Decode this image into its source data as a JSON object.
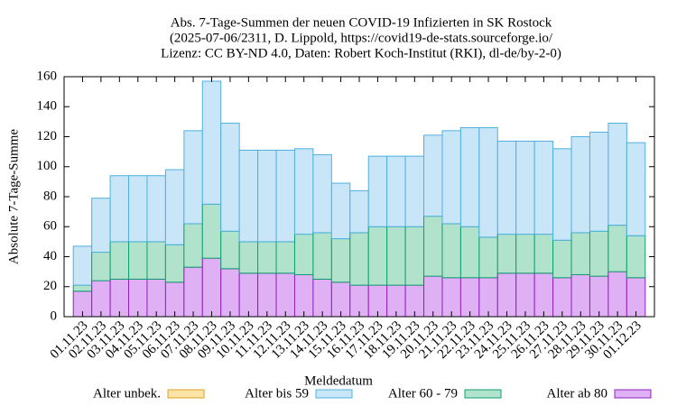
{
  "chart_data": {
    "type": "stacked_bar",
    "title": [
      "Abs. 7-Tage-Summen der neuen COVID-19 Infizierten in SK Rostock",
      "(2025-07-06/2311, D. Lippold, https://covid19-de-stats.sourceforge.io/",
      "Lizenz: CC BY-ND 4.0, Daten: Robert Koch-Institut (RKI), dl-de/by-2-0)"
    ],
    "x_label": "Meldedatum",
    "y_label": "Absolute 7-Tage-Summe",
    "categories": [
      "01.11.23",
      "02.11.23",
      "03.11.23",
      "04.11.23",
      "05.11.23",
      "06.11.23",
      "07.11.23",
      "08.11.23",
      "09.11.23",
      "10.11.23",
      "11.11.23",
      "12.11.23",
      "13.11.23",
      "14.11.23",
      "15.11.23",
      "16.11.23",
      "17.11.23",
      "18.11.23",
      "19.11.23",
      "20.11.23",
      "21.11.23",
      "22.11.23",
      "23.11.23",
      "24.11.23",
      "25.11.23",
      "26.11.23",
      "27.11.23",
      "28.11.23",
      "29.11.23",
      "30.11.23",
      "01.12.23"
    ],
    "series": [
      {
        "name": "Alter ab 80",
        "color": "#e0b0f4",
        "stroke": "#9020c0",
        "values": [
          17,
          24,
          25,
          25,
          25,
          23,
          33,
          39,
          32,
          29,
          29,
          29,
          28,
          25,
          23,
          21,
          21,
          21,
          21,
          27,
          26,
          26,
          26,
          29,
          29,
          29,
          26,
          28,
          27,
          30,
          26
        ]
      },
      {
        "name": "Alter 60 - 79",
        "color": "#b0e2cc",
        "stroke": "#10a070",
        "values": [
          4,
          19,
          25,
          25,
          25,
          25,
          29,
          36,
          25,
          21,
          21,
          21,
          27,
          31,
          29,
          35,
          39,
          39,
          39,
          40,
          36,
          34,
          27,
          26,
          26,
          26,
          25,
          28,
          30,
          31,
          28
        ]
      },
      {
        "name": "Alter bis 59",
        "color": "#c8e6f8",
        "stroke": "#50b0e0",
        "values": [
          26,
          36,
          44,
          44,
          44,
          50,
          62,
          82,
          72,
          61,
          61,
          61,
          57,
          52,
          37,
          28,
          47,
          47,
          47,
          54,
          62,
          66,
          73,
          62,
          62,
          62,
          61,
          64,
          66,
          68,
          62
        ]
      },
      {
        "name": "Alter unbek.",
        "color": "#fce4a8",
        "stroke": "#e0a020",
        "values": [
          0,
          0,
          0,
          0,
          0,
          0,
          0,
          0,
          0,
          0,
          0,
          0,
          0,
          0,
          0,
          0,
          0,
          0,
          0,
          0,
          0,
          0,
          0,
          0,
          0,
          0,
          0,
          0,
          0,
          0,
          0
        ]
      }
    ],
    "legend_order": [
      3,
      2,
      1,
      0
    ],
    "ylim": [
      0,
      160
    ],
    "yticks": [
      0,
      20,
      40,
      60,
      80,
      100,
      120,
      140,
      160
    ]
  }
}
